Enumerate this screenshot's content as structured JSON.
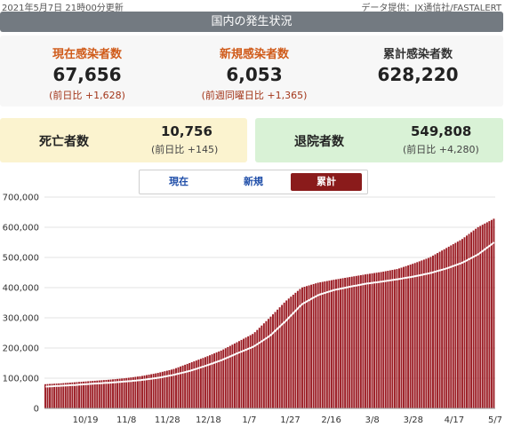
{
  "header": {
    "updated": "2021年5月7日 21時00分更新",
    "source": "データ提供：JX通信社/FASTALERT"
  },
  "title": "国内の発生状況",
  "stats": {
    "current": {
      "label": "現在感染者数",
      "value": "67,656",
      "sub": "(前日比 +1,628)"
    },
    "new": {
      "label": "新規感染者数",
      "value": "6,053",
      "sub": "(前週同曜日比 +1,365)"
    },
    "total": {
      "label": "累計感染者数",
      "value": "628,220"
    }
  },
  "deaths": {
    "label": "死亡者数",
    "value": "10,756",
    "sub": "(前日比 +145)"
  },
  "recovered": {
    "label": "退院者数",
    "value": "549,808",
    "sub": "(前日比 +4,280)"
  },
  "tabs": {
    "current": "現在",
    "new": "新規",
    "total": "累計",
    "selected": "累計"
  },
  "colors": {
    "bar": "#9b1c24",
    "line": "#ffffff",
    "tab_active": "#8a1b1b",
    "title_bg": "#737a81"
  },
  "chart_data": {
    "type": "bar",
    "xlabel": "",
    "ylabel": "",
    "ylim": [
      0,
      700000
    ],
    "yticks": [
      "0",
      "100,000",
      "200,000",
      "300,000",
      "400,000",
      "500,000",
      "600,000",
      "700,000"
    ],
    "xticks": [
      "",
      "10/19",
      "11/8",
      "11/28",
      "12/18",
      "1/7",
      "1/27",
      "2/16",
      "3/8",
      "3/28",
      "4/17",
      "5/7"
    ],
    "grid": true,
    "series": [
      {
        "kind": "bar",
        "values": [
          80000,
          83000,
          87000,
          91000,
          95000,
          100000,
          107000,
          117000,
          130000,
          150000,
          170000,
          192000,
          220000,
          248000,
          300000,
          355000,
          400000,
          416000,
          426000,
          435000,
          444000,
          452000,
          462000,
          480000,
          500000,
          530000,
          560000,
          600000,
          628220
        ]
      },
      {
        "kind": "line",
        "values": [
          72000,
          75000,
          78000,
          82000,
          85000,
          89000,
          94000,
          101000,
          111000,
          124000,
          141000,
          160000,
          183000,
          205000,
          240000,
          290000,
          345000,
          375000,
          392000,
          403000,
          413000,
          420000,
          428000,
          437000,
          448000,
          463000,
          482000,
          510000,
          549808
        ]
      }
    ]
  }
}
